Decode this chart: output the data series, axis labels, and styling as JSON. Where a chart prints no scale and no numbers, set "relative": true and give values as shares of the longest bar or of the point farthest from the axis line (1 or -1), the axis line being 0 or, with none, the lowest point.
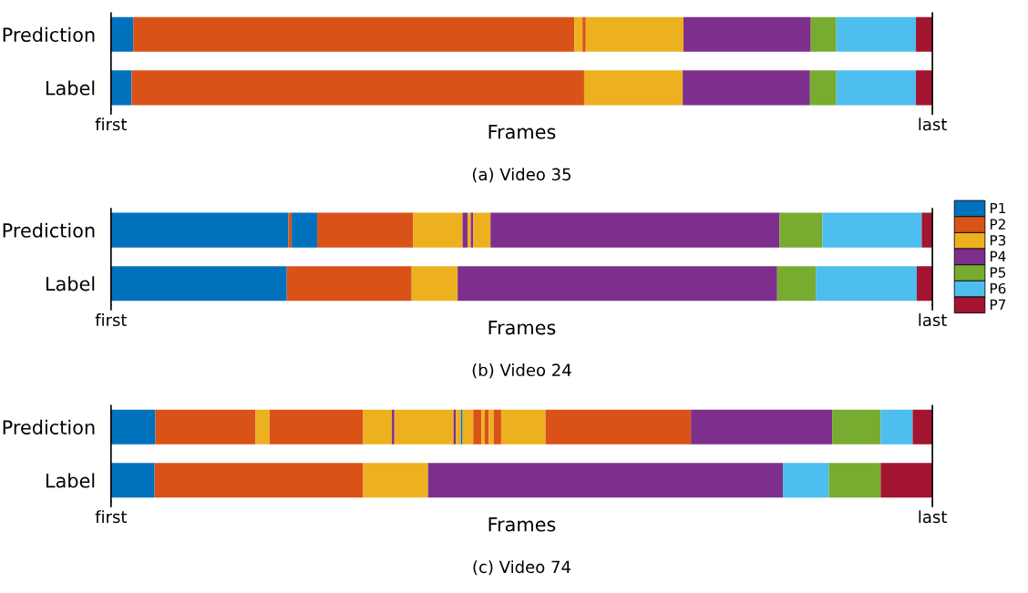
{
  "chart_data": [
    {
      "type": "bar",
      "orientation": "horizontal",
      "stacked": true,
      "relative": true,
      "title": "(a) Video 35",
      "xlabel": "Frames",
      "categories": [
        "Prediction",
        "Label"
      ],
      "annotations": [
        "first",
        "last"
      ],
      "legend": false,
      "series": [
        {
          "color": "#0072bd",
          "values": [
            0.027,
            null
          ]
        },
        {
          "color": "#d95319",
          "values": [
            0.537,
            null
          ]
        },
        {
          "color": "#edb120",
          "values": [
            0.01,
            null
          ]
        },
        {
          "color": "#d95319",
          "values": [
            0.004,
            null
          ]
        },
        {
          "color": "#edb120",
          "values": [
            0.119,
            null
          ]
        },
        {
          "color": "#7e2f8e",
          "values": [
            0.155,
            null
          ]
        },
        {
          "color": "#77ac30",
          "values": [
            0.031,
            null
          ]
        },
        {
          "color": "#4dbeee",
          "values": [
            0.097,
            null
          ]
        },
        {
          "color": "#a2142f",
          "values": [
            0.02,
            null
          ]
        },
        {
          "color": "#0072bd",
          "values": [
            null,
            0.025
          ]
        },
        {
          "color": "#d95319",
          "values": [
            null,
            0.551
          ]
        },
        {
          "color": "#edb120",
          "values": [
            null,
            0.12
          ]
        },
        {
          "color": "#7e2f8e",
          "values": [
            null,
            0.155
          ]
        },
        {
          "color": "#77ac30",
          "values": [
            null,
            0.032
          ]
        },
        {
          "color": "#4dbeee",
          "values": [
            null,
            0.097
          ]
        },
        {
          "color": "#a2142f",
          "values": [
            null,
            0.02
          ]
        }
      ]
    },
    {
      "type": "bar",
      "orientation": "horizontal",
      "stacked": true,
      "relative": true,
      "title": "(b) Video 24",
      "xlabel": "Frames",
      "categories": [
        "Prediction",
        "Label"
      ],
      "annotations": [
        "first",
        "last"
      ],
      "legend": "right",
      "series": [
        {
          "color": "#0072bd",
          "values": [
            0.216,
            null
          ]
        },
        {
          "color": "#d95319",
          "values": [
            0.004,
            null
          ]
        },
        {
          "color": "#0072bd",
          "values": [
            0.031,
            null
          ]
        },
        {
          "color": "#d95319",
          "values": [
            0.117,
            null
          ]
        },
        {
          "color": "#edb120",
          "values": [
            0.06,
            null
          ]
        },
        {
          "color": "#7e2f8e",
          "values": [
            0.006,
            null
          ]
        },
        {
          "color": "#edb120",
          "values": [
            0.004,
            null
          ]
        },
        {
          "color": "#7e2f8e",
          "values": [
            0.003,
            null
          ]
        },
        {
          "color": "#edb120",
          "values": [
            0.021,
            null
          ]
        },
        {
          "color": "#7e2f8e",
          "values": [
            0.352,
            null
          ]
        },
        {
          "color": "#77ac30",
          "values": [
            0.052,
            null
          ]
        },
        {
          "color": "#4dbeee",
          "values": [
            0.121,
            null
          ]
        },
        {
          "color": "#a2142f",
          "values": [
            0.013,
            null
          ]
        },
        {
          "name": "P1",
          "color": "#0072bd",
          "values": [
            null,
            0.214
          ]
        },
        {
          "name": "P2",
          "color": "#d95319",
          "values": [
            null,
            0.152
          ]
        },
        {
          "name": "P3",
          "color": "#edb120",
          "values": [
            null,
            0.056
          ]
        },
        {
          "name": "P4",
          "color": "#7e2f8e",
          "values": [
            null,
            0.389
          ]
        },
        {
          "name": "P5",
          "color": "#77ac30",
          "values": [
            null,
            0.047
          ]
        },
        {
          "name": "P6",
          "color": "#4dbeee",
          "values": [
            null,
            0.123
          ]
        },
        {
          "name": "P7",
          "color": "#a2142f",
          "values": [
            null,
            0.019
          ]
        }
      ]
    },
    {
      "type": "bar",
      "orientation": "horizontal",
      "stacked": true,
      "relative": true,
      "title": "(c) Video 74",
      "xlabel": "Frames",
      "categories": [
        "Prediction",
        "Label"
      ],
      "annotations": [
        "first",
        "last"
      ],
      "legend": false,
      "series": [
        {
          "color": "#0072bd",
          "values": [
            0.054,
            null
          ]
        },
        {
          "color": "#d95319",
          "values": [
            0.122,
            null
          ]
        },
        {
          "color": "#edb120",
          "values": [
            0.017,
            null
          ]
        },
        {
          "color": "#d95319",
          "values": [
            0.114,
            null
          ]
        },
        {
          "color": "#edb120",
          "values": [
            0.035,
            null
          ]
        },
        {
          "color": "#7e2f8e",
          "values": [
            0.003,
            null
          ]
        },
        {
          "color": "#edb120",
          "values": [
            0.072,
            null
          ]
        },
        {
          "color": "#7e2f8e",
          "values": [
            0.003,
            null
          ]
        },
        {
          "color": "#edb120",
          "values": [
            0.006,
            null
          ]
        },
        {
          "color": "#0072bd",
          "values": [
            0.002,
            null
          ]
        },
        {
          "color": "#edb120",
          "values": [
            0.013,
            null
          ]
        },
        {
          "color": "#d95319",
          "values": [
            0.01,
            null
          ]
        },
        {
          "color": "#edb120",
          "values": [
            0.004,
            null
          ]
        },
        {
          "color": "#d95319",
          "values": [
            0.005,
            null
          ]
        },
        {
          "color": "#edb120",
          "values": [
            0.006,
            null
          ]
        },
        {
          "color": "#d95319",
          "values": [
            0.009,
            null
          ]
        },
        {
          "color": "#edb120",
          "values": [
            0.054,
            null
          ]
        },
        {
          "color": "#d95319",
          "values": [
            0.177,
            null
          ]
        },
        {
          "color": "#7e2f8e",
          "values": [
            0.172,
            null
          ]
        },
        {
          "color": "#77ac30",
          "values": [
            0.059,
            null
          ]
        },
        {
          "color": "#4dbeee",
          "values": [
            0.039,
            null
          ]
        },
        {
          "color": "#a2142f",
          "values": [
            0.024,
            null
          ]
        },
        {
          "color": "#0072bd",
          "values": [
            null,
            0.053
          ]
        },
        {
          "color": "#d95319",
          "values": [
            null,
            0.254
          ]
        },
        {
          "color": "#edb120",
          "values": [
            null,
            0.079
          ]
        },
        {
          "color": "#7e2f8e",
          "values": [
            null,
            0.432
          ]
        },
        {
          "color": "#4dbeee",
          "values": [
            null,
            0.056
          ]
        },
        {
          "color": "#77ac30",
          "values": [
            null,
            0.063
          ]
        },
        {
          "color": "#a2142f",
          "values": [
            null,
            0.063
          ]
        }
      ]
    }
  ]
}
